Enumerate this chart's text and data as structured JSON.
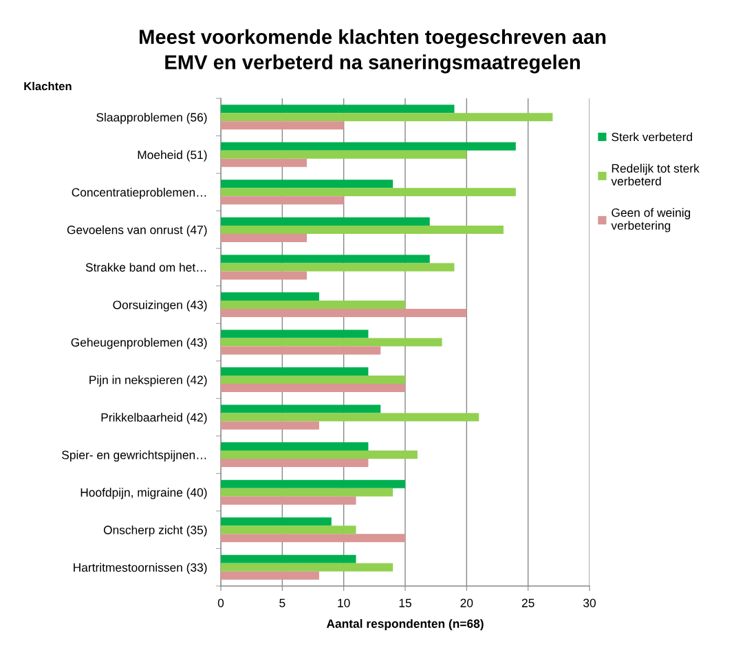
{
  "chart_data": {
    "type": "bar",
    "orientation": "horizontal",
    "title": "Meest voorkomende klachten toegeschreven aan\nEMV en verbeterd na saneringsmaatregelen",
    "ylabel": "Klachten",
    "xlabel": "Aantal respondenten (n=68)",
    "categories": [
      "Slaapproblemen (56)",
      "Moeheid (51)",
      "Concentratieproblemen…",
      "Gevoelens van onrust (47)",
      "Strakke band om het…",
      "Oorsuizingen (43)",
      "Geheugenproblemen (43)",
      "Pijn in nekspieren (42)",
      "Prikkelbaarheid (42)",
      "Spier- en gewrichtspijnen…",
      "Hoofdpijn, migraine (40)",
      "Onscherp zicht (35)",
      "Hartritmestoornissen (33)"
    ],
    "series": [
      {
        "name": "Sterk verbeterd",
        "color": "#00b050",
        "values": [
          19,
          24,
          14,
          17,
          17,
          8,
          12,
          12,
          13,
          12,
          15,
          9,
          11
        ]
      },
      {
        "name": "Redelijk tot sterk verbeterd",
        "color": "#92d050",
        "values": [
          27,
          20,
          24,
          23,
          19,
          15,
          18,
          15,
          21,
          16,
          14,
          11,
          14
        ]
      },
      {
        "name": "Geen of weinig verbetering",
        "color": "#d99694",
        "values": [
          10,
          7,
          10,
          7,
          7,
          20,
          13,
          15,
          8,
          12,
          11,
          15,
          8
        ]
      }
    ],
    "xlim": [
      0,
      30
    ],
    "xticks": [
      0,
      5,
      10,
      15,
      20,
      25,
      30
    ],
    "grid": "x",
    "legend": "right"
  }
}
